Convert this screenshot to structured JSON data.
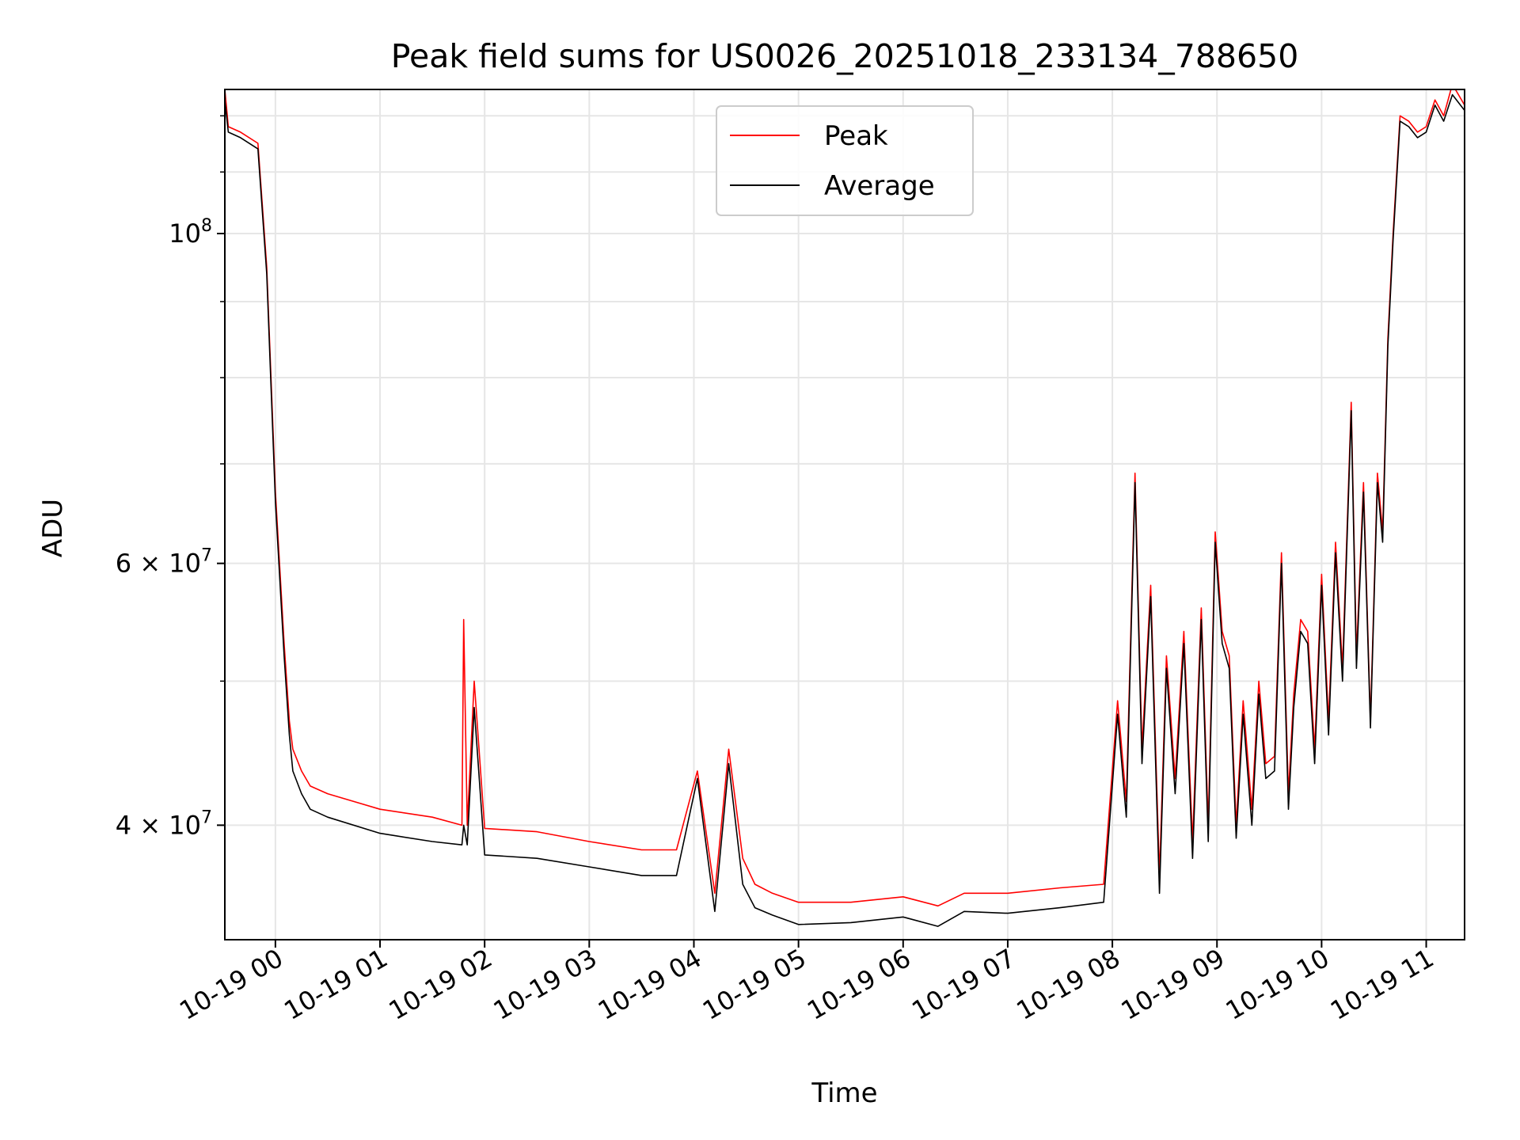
{
  "chart_data": {
    "type": "line",
    "title": "Peak field sums for US0026_20251018_233134_788650",
    "xlabel": "Time",
    "ylabel": "ADU",
    "yscale": "log",
    "grid": true,
    "legend_position": "top-center",
    "xlim": [
      "2025-10-18 23:31",
      "2025-10-19 11:22"
    ],
    "ylim": [
      33500000,
      125000000
    ],
    "x_ticks": [
      "10-19 00",
      "10-19 01",
      "10-19 02",
      "10-19 03",
      "10-19 04",
      "10-19 05",
      "10-19 06",
      "10-19 07",
      "10-19 08",
      "10-19 09",
      "10-19 10",
      "10-19 11"
    ],
    "y_ticks": [
      {
        "value": 100000000,
        "label": "10^8"
      },
      {
        "value": 60000000,
        "label": "6 × 10^7"
      },
      {
        "value": 40000000,
        "label": "4 × 10^7"
      }
    ],
    "series": [
      {
        "name": "Peak",
        "color": "#ff0000",
        "x": [
          "2025-10-18 23:31",
          "2025-10-18 23:33",
          "2025-10-18 23:40",
          "2025-10-18 23:50",
          "2025-10-18 23:55",
          "2025-10-19 00:00",
          "2025-10-19 00:05",
          "2025-10-19 00:08",
          "2025-10-19 00:10",
          "2025-10-19 00:15",
          "2025-10-19 00:20",
          "2025-10-19 00:30",
          "2025-10-19 01:00",
          "2025-10-19 01:30",
          "2025-10-19 01:47",
          "2025-10-19 01:48",
          "2025-10-19 01:50",
          "2025-10-19 01:54",
          "2025-10-19 02:00",
          "2025-10-19 02:30",
          "2025-10-19 03:00",
          "2025-10-19 03:30",
          "2025-10-19 03:50",
          "2025-10-19 04:02",
          "2025-10-19 04:12",
          "2025-10-19 04:20",
          "2025-10-19 04:28",
          "2025-10-19 04:35",
          "2025-10-19 04:45",
          "2025-10-19 05:00",
          "2025-10-19 05:30",
          "2025-10-19 06:00",
          "2025-10-19 06:20",
          "2025-10-19 06:35",
          "2025-10-19 07:00",
          "2025-10-19 07:30",
          "2025-10-19 07:55",
          "2025-10-19 08:03",
          "2025-10-19 08:08",
          "2025-10-19 08:13",
          "2025-10-19 08:17",
          "2025-10-19 08:22",
          "2025-10-19 08:27",
          "2025-10-19 08:31",
          "2025-10-19 08:36",
          "2025-10-19 08:41",
          "2025-10-19 08:46",
          "2025-10-19 08:51",
          "2025-10-19 08:55",
          "2025-10-19 08:59",
          "2025-10-19 09:03",
          "2025-10-19 09:07",
          "2025-10-19 09:11",
          "2025-10-19 09:15",
          "2025-10-19 09:20",
          "2025-10-19 09:24",
          "2025-10-19 09:28",
          "2025-10-19 09:33",
          "2025-10-19 09:37",
          "2025-10-19 09:41",
          "2025-10-19 09:44",
          "2025-10-19 09:48",
          "2025-10-19 09:52",
          "2025-10-19 09:56",
          "2025-10-19 10:00",
          "2025-10-19 10:04",
          "2025-10-19 10:08",
          "2025-10-19 10:12",
          "2025-10-19 10:17",
          "2025-10-19 10:20",
          "2025-10-19 10:24",
          "2025-10-19 10:28",
          "2025-10-19 10:32",
          "2025-10-19 10:35",
          "2025-10-19 10:38",
          "2025-10-19 10:41",
          "2025-10-19 10:45",
          "2025-10-19 10:50",
          "2025-10-19 10:55",
          "2025-10-19 11:00",
          "2025-10-19 11:05",
          "2025-10-19 11:10",
          "2025-10-19 11:15",
          "2025-10-19 11:22"
        ],
        "values": [
          125000000,
          118000000,
          117000000,
          115000000,
          95000000,
          67000000,
          53000000,
          47000000,
          45000000,
          43500000,
          42500000,
          42000000,
          41000000,
          40500000,
          40000000,
          55000000,
          40000000,
          50000000,
          39800000,
          39600000,
          39000000,
          38500000,
          38500000,
          43500000,
          36000000,
          45000000,
          38000000,
          36500000,
          36000000,
          35500000,
          35500000,
          35800000,
          35300000,
          36000000,
          36000000,
          36300000,
          36500000,
          48500000,
          41500000,
          69000000,
          45000000,
          58000000,
          37000000,
          52000000,
          43000000,
          54000000,
          39000000,
          56000000,
          40000000,
          63000000,
          54000000,
          52000000,
          40000000,
          48500000,
          41000000,
          50000000,
          44000000,
          44500000,
          61000000,
          42000000,
          49000000,
          55000000,
          54000000,
          45000000,
          59000000,
          47000000,
          62000000,
          51000000,
          77000000,
          52000000,
          68000000,
          47000000,
          69000000,
          63000000,
          85000000,
          100000000,
          120000000,
          119000000,
          117000000,
          118000000,
          123000000,
          120000000,
          126000000,
          122000000
        ]
      },
      {
        "name": "Average",
        "color": "#000000",
        "x": [
          "2025-10-18 23:31",
          "2025-10-18 23:33",
          "2025-10-18 23:40",
          "2025-10-18 23:50",
          "2025-10-18 23:55",
          "2025-10-19 00:00",
          "2025-10-19 00:05",
          "2025-10-19 00:08",
          "2025-10-19 00:10",
          "2025-10-19 00:15",
          "2025-10-19 00:20",
          "2025-10-19 00:30",
          "2025-10-19 01:00",
          "2025-10-19 01:30",
          "2025-10-19 01:47",
          "2025-10-19 01:48",
          "2025-10-19 01:50",
          "2025-10-19 01:54",
          "2025-10-19 02:00",
          "2025-10-19 02:30",
          "2025-10-19 03:00",
          "2025-10-19 03:30",
          "2025-10-19 03:50",
          "2025-10-19 04:02",
          "2025-10-19 04:12",
          "2025-10-19 04:20",
          "2025-10-19 04:28",
          "2025-10-19 04:35",
          "2025-10-19 04:45",
          "2025-10-19 05:00",
          "2025-10-19 05:30",
          "2025-10-19 06:00",
          "2025-10-19 06:20",
          "2025-10-19 06:35",
          "2025-10-19 07:00",
          "2025-10-19 07:30",
          "2025-10-19 07:55",
          "2025-10-19 08:03",
          "2025-10-19 08:08",
          "2025-10-19 08:13",
          "2025-10-19 08:17",
          "2025-10-19 08:22",
          "2025-10-19 08:27",
          "2025-10-19 08:31",
          "2025-10-19 08:36",
          "2025-10-19 08:41",
          "2025-10-19 08:46",
          "2025-10-19 08:51",
          "2025-10-19 08:55",
          "2025-10-19 08:59",
          "2025-10-19 09:03",
          "2025-10-19 09:07",
          "2025-10-19 09:11",
          "2025-10-19 09:15",
          "2025-10-19 09:20",
          "2025-10-19 09:24",
          "2025-10-19 09:28",
          "2025-10-19 09:33",
          "2025-10-19 09:37",
          "2025-10-19 09:41",
          "2025-10-19 09:44",
          "2025-10-19 09:48",
          "2025-10-19 09:52",
          "2025-10-19 09:56",
          "2025-10-19 10:00",
          "2025-10-19 10:04",
          "2025-10-19 10:08",
          "2025-10-19 10:12",
          "2025-10-19 10:17",
          "2025-10-19 10:20",
          "2025-10-19 10:24",
          "2025-10-19 10:28",
          "2025-10-19 10:32",
          "2025-10-19 10:35",
          "2025-10-19 10:38",
          "2025-10-19 10:41",
          "2025-10-19 10:45",
          "2025-10-19 10:50",
          "2025-10-19 10:55",
          "2025-10-19 11:00",
          "2025-10-19 11:05",
          "2025-10-19 11:10",
          "2025-10-19 11:15",
          "2025-10-19 11:22"
        ],
        "values": [
          123000000,
          117000000,
          116000000,
          114000000,
          94000000,
          66000000,
          52000000,
          46000000,
          43500000,
          42000000,
          41000000,
          40500000,
          39500000,
          39000000,
          38800000,
          40000000,
          38800000,
          48000000,
          38200000,
          38000000,
          37500000,
          37000000,
          37000000,
          43000000,
          35000000,
          44000000,
          36500000,
          35200000,
          34800000,
          34300000,
          34400000,
          34700000,
          34200000,
          35000000,
          34900000,
          35200000,
          35500000,
          47500000,
          40500000,
          68000000,
          44000000,
          57000000,
          36000000,
          51000000,
          42000000,
          53000000,
          38000000,
          55000000,
          39000000,
          62000000,
          53000000,
          51000000,
          39200000,
          47500000,
          40000000,
          49000000,
          43000000,
          43500000,
          60000000,
          41000000,
          48000000,
          54000000,
          53000000,
          44000000,
          58000000,
          46000000,
          61000000,
          50000000,
          76000000,
          51000000,
          67000000,
          46500000,
          68000000,
          62000000,
          84000000,
          99000000,
          119000000,
          118000000,
          116000000,
          117000000,
          122000000,
          119000000,
          124000000,
          121000000
        ]
      }
    ]
  }
}
